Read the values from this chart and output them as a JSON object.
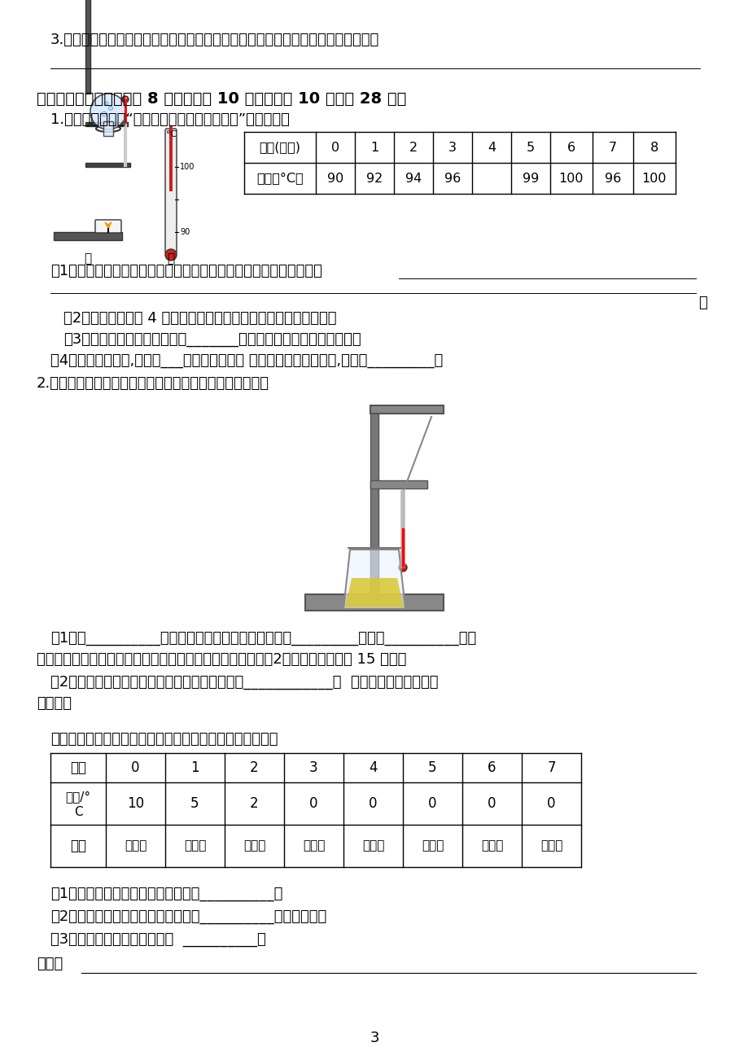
{
  "bg_color": "#ffffff",
  "page_number": "3",
  "content": {
    "q3_text": "3.冬天，戴眼镜的同学从室外进入到室内时，眼镜片上会有一层白色的雾，为什么？",
    "section4_title": "四、实验分析题（第一题 8 分，第二题 10 分，第三题 10 分，共 28 分）",
    "q1_text": "1.如图甲所示，是“研究水沸腾时温度变化特点”的装置图。",
    "table1_headers": [
      "时间(分钟)",
      "0",
      "1",
      "2",
      "3",
      "4",
      "5",
      "6",
      "7",
      "8"
    ],
    "table1_row2_label": "温度（°C）",
    "table1_row2_values": [
      "90",
      "92",
      "94",
      "96",
      "",
      "99",
      "100",
      "96",
      "100"
    ],
    "q1_sub1": "（1）实验时，小雯向烧杆中倒入热水而不用冷水，这种做法的目的是",
    "q1_sub2": "（2）图乙是实验第 4 分钟时温度计的示数，将其读数记录到表中。",
    "q1_sub3": "（3）从记录的数据看出，在第_______分钟记录的数据是明显错误的。",
    "q1_sub4": "（4）从实验可得出,加热了___分钟水开始沸腾 水沸腾过程中需要吸热,但温度_________。",
    "q2_text": "2.热水变凉有一定的规律，请根据提示完成实验操作内容。",
    "q2_sub1": "（1）将__________悬在铁架台上。在烧杆内倒入半杯_________，调整__________与它",
    "q2_sub1b": "的位置。等它的液柱上升到最高点时，读出温度并记录，每隔2分钟读一次，观察 15 分钟。",
    "q2_sub2a": "（2）实验结论：热水变凉的过程，温度的变化是____________。  请写出为什么会有这样",
    "q2_sub2b": "的变化？",
    "q3_intro": "仔细观察下表的内容，并结合所学的知识回答以下的问题。",
    "table2_col0": "分钟",
    "table2_col0_values": [
      "0",
      "1",
      "2",
      "3",
      "4",
      "5",
      "6",
      "7"
    ],
    "table2_row_temp_label_line1": "温度/°",
    "table2_row_temp_label_line2": "C",
    "table2_row_temp_values": [
      "10",
      "5",
      "2",
      "0",
      "0",
      "0",
      "0",
      "0"
    ],
    "table2_row_change_label": "变化",
    "table2_row_change_values": [
      "没结冰",
      "没结冰",
      "没结冰",
      "结冰中",
      "结冰中",
      "结冰中",
      "结冰中",
      "结冰中"
    ],
    "q3_sub1": "（1）试管中清水的温度的下降速度是__________。",
    "q3_sub2": "（2）用温度计测水温时，温度计下端__________接触试管壁。",
    "q3_sub3": "（3）冰和水是同一种物质吗？  __________。",
    "q3_sub4_label": "理由："
  }
}
